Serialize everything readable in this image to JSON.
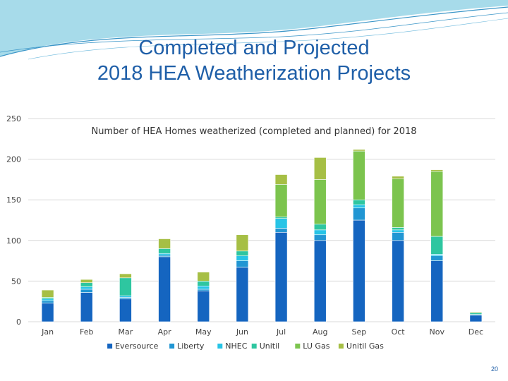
{
  "slide": {
    "title_line1": "Completed and Projected",
    "title_line2": "2018 HEA Weatherization Projects",
    "page_number": "20"
  },
  "colors": {
    "title": "#1f5fa8",
    "deco_fill": "#a7dbea",
    "deco_line": "#3b96c8"
  },
  "chart_data": {
    "type": "bar",
    "stacked": true,
    "title": "Number of HEA Homes weatherized (completed and planned) for 2018",
    "categories": [
      "Jan",
      "Feb",
      "Mar",
      "Apr",
      "May",
      "Jun",
      "Jul",
      "Aug",
      "Sep",
      "Oct",
      "Nov",
      "Dec"
    ],
    "ylim": [
      0,
      250
    ],
    "yticks": [
      0,
      50,
      100,
      150,
      200,
      250
    ],
    "grid": true,
    "legend_position": "bottom",
    "series": [
      {
        "name": "Eversource",
        "color": "#1565c0",
        "values": [
          23,
          36,
          28,
          80,
          38,
          67,
          110,
          100,
          125,
          100,
          75,
          8
        ]
      },
      {
        "name": "Liberty",
        "color": "#2196d3",
        "values": [
          3,
          4,
          2,
          2,
          2,
          8,
          5,
          7,
          15,
          10,
          6,
          1
        ]
      },
      {
        "name": "NHEC",
        "color": "#27c4e6",
        "values": [
          2,
          3,
          2,
          2,
          4,
          6,
          12,
          6,
          4,
          3,
          2,
          0
        ]
      },
      {
        "name": "Unitil",
        "color": "#2ec6a0",
        "values": [
          2,
          5,
          22,
          6,
          6,
          6,
          2,
          7,
          6,
          3,
          22,
          2
        ]
      },
      {
        "name": "LU Gas",
        "color": "#7cc44e",
        "values": [
          0,
          0,
          0,
          0,
          0,
          0,
          40,
          55,
          60,
          60,
          80,
          0
        ]
      },
      {
        "name": "Unitil Gas",
        "color": "#a6bf45",
        "values": [
          9,
          4,
          5,
          12,
          11,
          20,
          12,
          27,
          2,
          3,
          2,
          1
        ]
      }
    ]
  }
}
